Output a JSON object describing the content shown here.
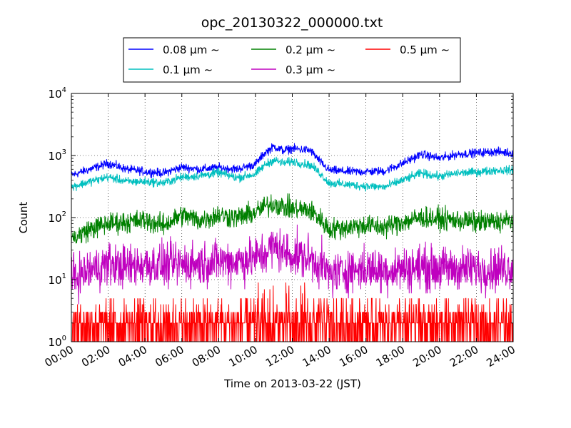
{
  "chart_data": {
    "type": "line",
    "title": "opc_20130322_000000.txt",
    "xlabel": "Time on 2013-03-22 (JST)",
    "ylabel": "Count",
    "y_scale": "log",
    "ylim": [
      1,
      10000
    ],
    "xlim": [
      "00:00",
      "24:00"
    ],
    "grid": true,
    "legend_position": "top-center",
    "x_ticks": [
      "00:00",
      "02:00",
      "04:00",
      "06:00",
      "08:00",
      "10:00",
      "12:00",
      "14:00",
      "16:00",
      "18:00",
      "20:00",
      "22:00",
      "24:00"
    ],
    "y_ticks": [
      {
        "base": "10",
        "exp": "0",
        "value": 1
      },
      {
        "base": "10",
        "exp": "1",
        "value": 10
      },
      {
        "base": "10",
        "exp": "2",
        "value": 100
      },
      {
        "base": "10",
        "exp": "3",
        "value": 1000
      },
      {
        "base": "10",
        "exp": "4",
        "value": 10000
      }
    ],
    "x_hours": [
      0,
      1,
      2,
      3,
      4,
      5,
      6,
      7,
      8,
      9,
      10,
      10.5,
      11,
      11.5,
      12,
      13,
      13.5,
      14,
      15,
      16,
      17,
      18,
      19,
      20,
      21,
      22,
      23,
      24
    ],
    "series": [
      {
        "name": "0.08 μm ∼",
        "color": "#0000ff",
        "noise": 0.14,
        "values": [
          480,
          600,
          750,
          600,
          550,
          520,
          650,
          600,
          640,
          600,
          720,
          1100,
          1400,
          1200,
          1300,
          1200,
          800,
          580,
          550,
          550,
          560,
          750,
          1050,
          900,
          1050,
          1100,
          1150,
          1100
        ]
      },
      {
        "name": "0.1 μm ∼",
        "color": "#00bfbf",
        "noise": 0.14,
        "values": [
          310,
          380,
          450,
          380,
          380,
          360,
          450,
          470,
          530,
          440,
          500,
          700,
          850,
          750,
          800,
          700,
          520,
          360,
          340,
          320,
          310,
          400,
          520,
          460,
          520,
          540,
          580,
          580
        ]
      },
      {
        "name": "0.2 μm ∼",
        "color": "#008000",
        "noise": 0.35,
        "values": [
          45,
          65,
          80,
          85,
          90,
          75,
          110,
          90,
          110,
          100,
          120,
          150,
          170,
          150,
          140,
          130,
          95,
          65,
          70,
          75,
          70,
          85,
          100,
          95,
          90,
          85,
          85,
          90
        ]
      },
      {
        "name": "0.3 μm ∼",
        "color": "#bf00bf",
        "noise": 0.7,
        "values": [
          10,
          14,
          18,
          16,
          18,
          17,
          18,
          18,
          20,
          20,
          22,
          26,
          35,
          28,
          25,
          22,
          18,
          12,
          14,
          15,
          14,
          15,
          16,
          15,
          15,
          15,
          15,
          16
        ]
      },
      {
        "name": "0.5 μm ∼",
        "color": "#ff0000",
        "noise": 1.0,
        "values": [
          1.6,
          1.7,
          1.8,
          1.8,
          1.8,
          1.8,
          1.8,
          1.8,
          1.8,
          1.8,
          1.9,
          2.3,
          2.7,
          2.4,
          2.3,
          2.2,
          1.9,
          1.8,
          1.8,
          1.8,
          1.8,
          1.8,
          1.8,
          1.8,
          1.8,
          1.8,
          1.8,
          1.8
        ]
      }
    ]
  }
}
